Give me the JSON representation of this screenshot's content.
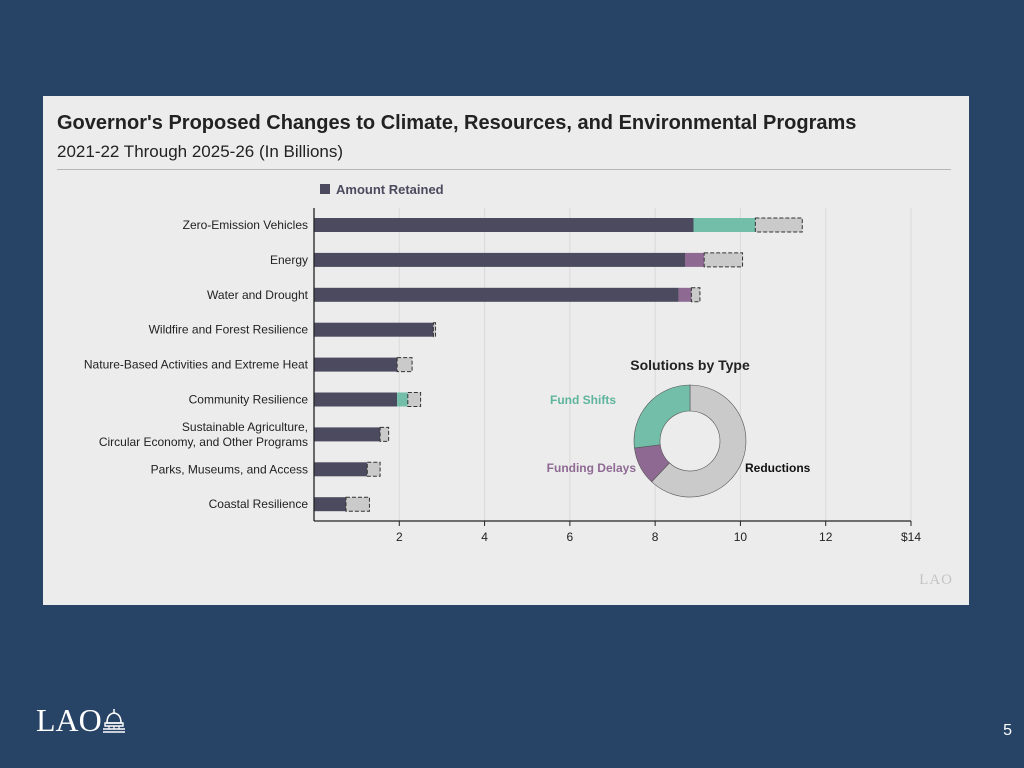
{
  "slide": {
    "title": "Governor's Proposed Changes to Climate, Resources, and Environmental Programs",
    "subtitle": "2021-22 Through 2025-26 (In Billions)",
    "logo_small": "LAO",
    "logo_footer": "LAO",
    "page_number": "5"
  },
  "chart_data": [
    {
      "type": "bar",
      "orientation": "horizontal",
      "stacked": true,
      "categories": [
        "Zero-Emission Vehicles",
        "Energy",
        "Water and Drought",
        "Wildfire and Forest Resilience",
        "Nature-Based Activities and Extreme Heat",
        "Community Resilience",
        "Sustainable Agriculture,\nCircular Economy, and Other Programs",
        "Parks, Museums, and Access",
        "Coastal Resilience"
      ],
      "series": [
        {
          "name": "Amount Retained",
          "color": "#4b4a5e",
          "values": [
            8.9,
            8.7,
            8.55,
            2.8,
            1.95,
            1.95,
            1.55,
            1.25,
            0.75
          ]
        },
        {
          "name": "Fund Shifts",
          "color": "#72bea9",
          "values": [
            1.45,
            0,
            0,
            0,
            0,
            0.25,
            0,
            0,
            0
          ]
        },
        {
          "name": "Funding Delays",
          "color": "#8e6a93",
          "values": [
            0,
            0.45,
            0.3,
            0,
            0,
            0,
            0,
            0,
            0
          ]
        },
        {
          "name": "Reductions",
          "color": "#cacaca",
          "dashed": true,
          "values": [
            1.1,
            0.9,
            0.2,
            0.05,
            0.35,
            0.3,
            0.2,
            0.3,
            0.55
          ]
        }
      ],
      "legend": [
        "Amount Retained"
      ],
      "xlim": [
        0,
        14
      ],
      "xticks": [
        2,
        4,
        6,
        8,
        10,
        12,
        14
      ],
      "xtick_labels": [
        "2",
        "4",
        "6",
        "8",
        "10",
        "12",
        "$14"
      ],
      "grid": true
    },
    {
      "type": "pie",
      "donut": true,
      "title": "Solutions by Type",
      "labels": [
        "Reductions",
        "Funding Delays",
        "Fund Shifts"
      ],
      "values": [
        62,
        11,
        27
      ],
      "colors": [
        "#cacaca",
        "#8e6a93",
        "#72bea9"
      ]
    }
  ]
}
